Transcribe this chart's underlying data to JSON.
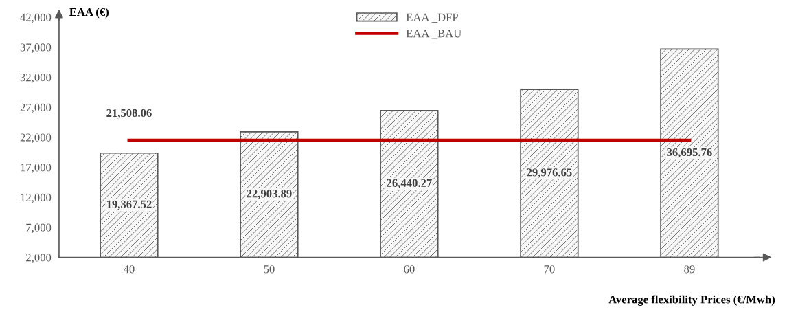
{
  "chart_data": {
    "type": "bar",
    "ylabel": "EAA (€)",
    "xlabel": "Average flexibility Prices (€/Mwh)",
    "categories": [
      "40",
      "50",
      "60",
      "70",
      "89"
    ],
    "series": [
      {
        "name": "EAA _DFP",
        "color": "#595959",
        "values": [
          19367.52,
          22903.89,
          26440.27,
          29976.65,
          36695.76
        ],
        "value_labels": [
          "19,367.52",
          "22,903.89",
          "26,440.27",
          "29,976.65",
          "36,695.76"
        ]
      },
      {
        "name": "EAA _BAU",
        "type": "line",
        "color": "#c00000",
        "values": [
          21508.06,
          21508.06,
          21508.06,
          21508.06,
          21508.06
        ],
        "value_labels": [
          "21,508.06",
          null,
          null,
          null,
          null
        ]
      }
    ],
    "ylim": [
      2000,
      42000
    ],
    "yticks": [
      {
        "value": 2000,
        "label": "2,000"
      },
      {
        "value": 7000,
        "label": "7,000"
      },
      {
        "value": 12000,
        "label": "12,000"
      },
      {
        "value": 17000,
        "label": "17,000"
      },
      {
        "value": 22000,
        "label": "22,000"
      },
      {
        "value": 27000,
        "label": "27,000"
      },
      {
        "value": 32000,
        "label": "32,000"
      },
      {
        "value": 37000,
        "label": "37,000"
      },
      {
        "value": 42000,
        "label": "42,000"
      }
    ],
    "grid": false,
    "legend": "top",
    "marker": "none",
    "line_style": "solid"
  }
}
